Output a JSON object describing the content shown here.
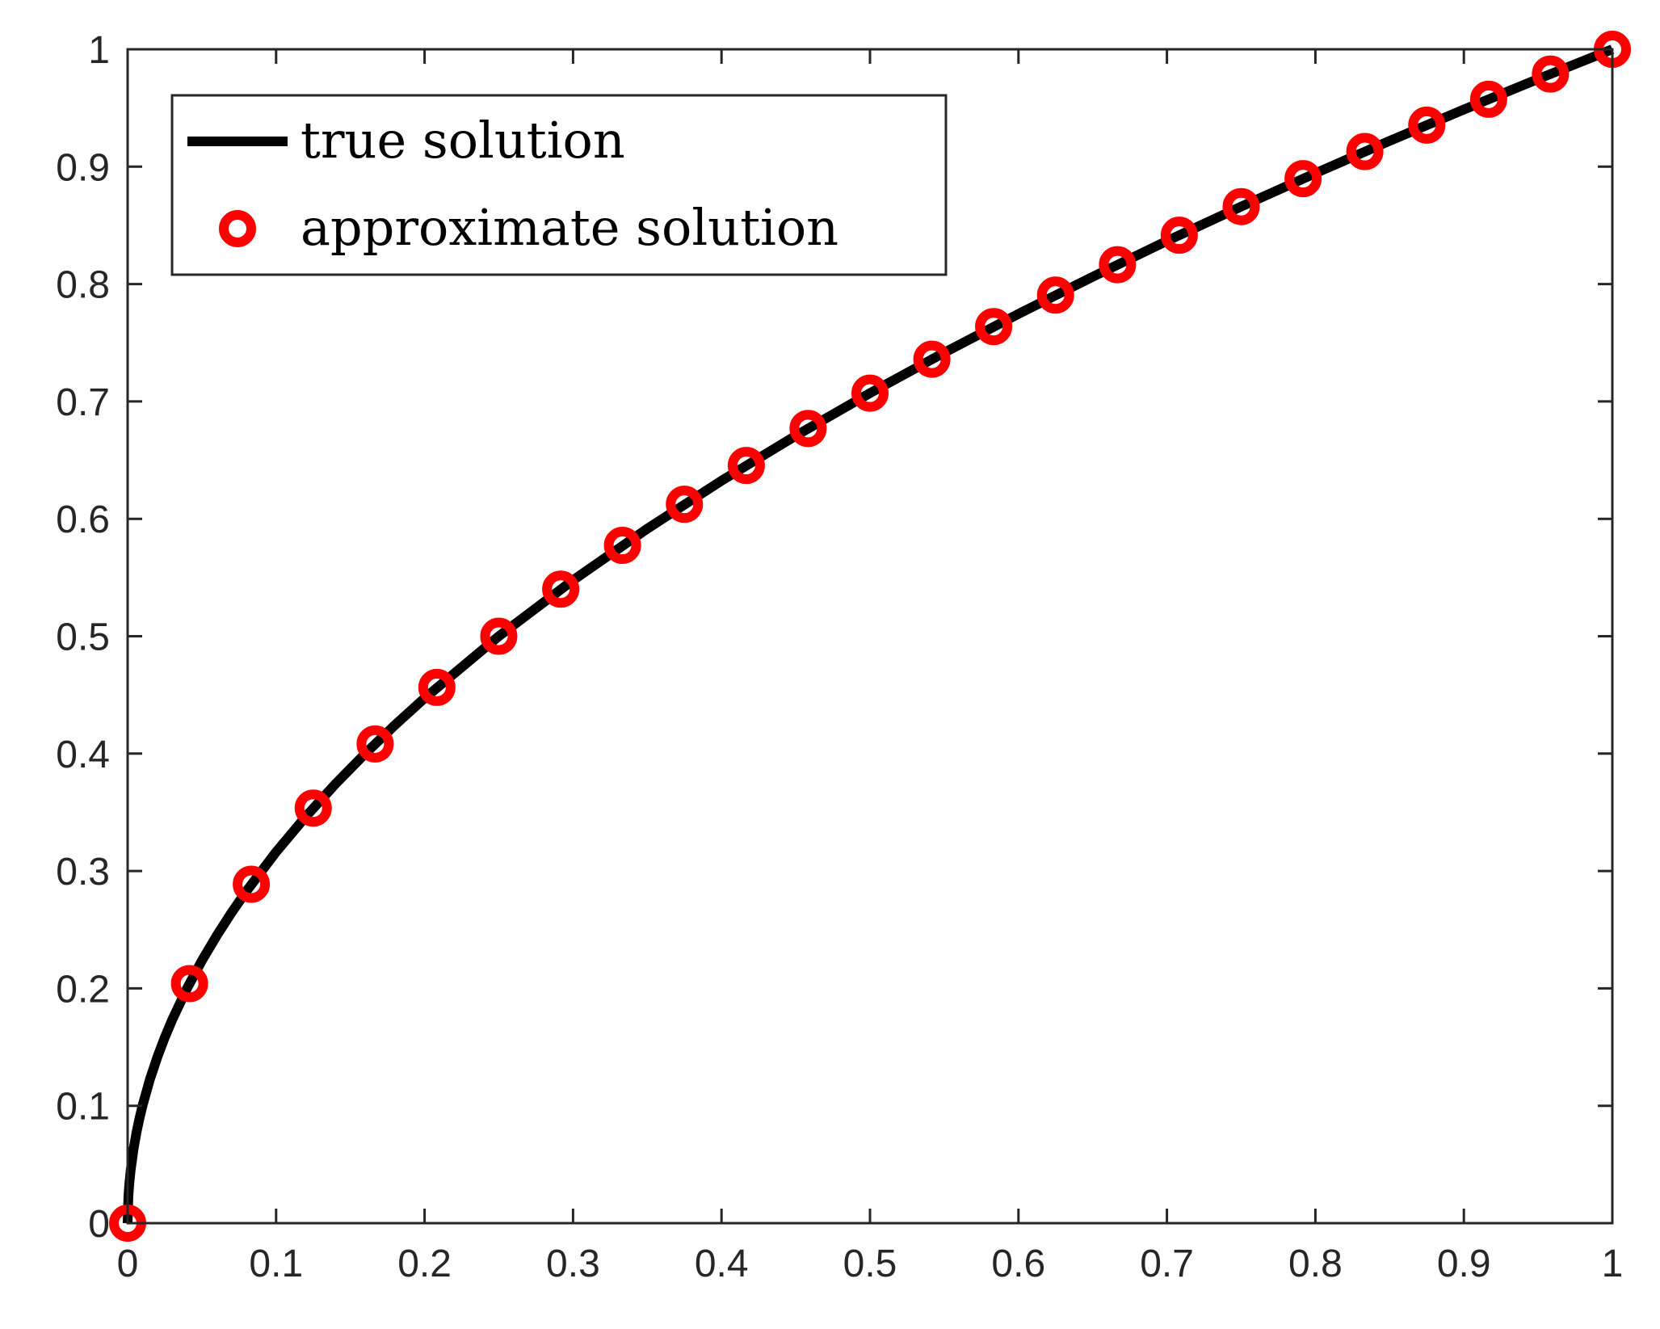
{
  "chart_data": {
    "type": "line",
    "title": "",
    "xlabel": "",
    "ylabel": "",
    "xlim": [
      0,
      1
    ],
    "ylim": [
      0,
      1
    ],
    "grid": false,
    "legend_position": "top-left",
    "x_ticks": [
      "0",
      "0.1",
      "0.2",
      "0.3",
      "0.4",
      "0.5",
      "0.6",
      "0.7",
      "0.8",
      "0.9",
      "1"
    ],
    "y_ticks": [
      "0",
      "0.1",
      "0.2",
      "0.3",
      "0.4",
      "0.5",
      "0.6",
      "0.7",
      "0.8",
      "0.9",
      "1"
    ],
    "series": [
      {
        "name": "true solution",
        "style": "line",
        "color": "#000000",
        "function": "sqrt(x)",
        "x": [
          0,
          0.0005,
          0.001,
          0.002,
          0.004,
          0.006,
          0.008,
          0.01,
          0.015,
          0.02,
          0.025,
          0.03,
          0.04,
          0.05,
          0.06,
          0.07,
          0.08,
          0.1,
          0.12,
          0.14,
          0.16,
          0.18,
          0.2,
          0.25,
          0.3,
          0.35,
          0.4,
          0.45,
          0.5,
          0.55,
          0.6,
          0.65,
          0.7,
          0.75,
          0.8,
          0.85,
          0.9,
          0.95,
          1.0
        ],
        "y": [
          0,
          0.0224,
          0.0316,
          0.0447,
          0.0632,
          0.0775,
          0.0894,
          0.1,
          0.1225,
          0.1414,
          0.1581,
          0.1732,
          0.2,
          0.2236,
          0.2449,
          0.2646,
          0.2828,
          0.3162,
          0.3464,
          0.3742,
          0.4,
          0.4243,
          0.4472,
          0.5,
          0.5477,
          0.5916,
          0.6325,
          0.6708,
          0.7071,
          0.7416,
          0.7746,
          0.8062,
          0.8367,
          0.866,
          0.8944,
          0.922,
          0.9487,
          0.9747,
          1.0
        ]
      },
      {
        "name": "approximate solution",
        "style": "marker-circle",
        "color": "#ff0000",
        "x": [
          0,
          0.0417,
          0.0833,
          0.125,
          0.1667,
          0.2083,
          0.25,
          0.2917,
          0.3333,
          0.375,
          0.4167,
          0.4583,
          0.5,
          0.5417,
          0.5833,
          0.625,
          0.6667,
          0.7083,
          0.75,
          0.7917,
          0.8333,
          0.875,
          0.9167,
          0.9583,
          1.0
        ],
        "y": [
          0,
          0.2041,
          0.2887,
          0.3536,
          0.4082,
          0.4564,
          0.5,
          0.5401,
          0.5774,
          0.6124,
          0.6455,
          0.677,
          0.7071,
          0.736,
          0.7638,
          0.7906,
          0.8165,
          0.8416,
          0.866,
          0.8898,
          0.9129,
          0.9354,
          0.9574,
          0.9789,
          1.0
        ]
      }
    ]
  }
}
